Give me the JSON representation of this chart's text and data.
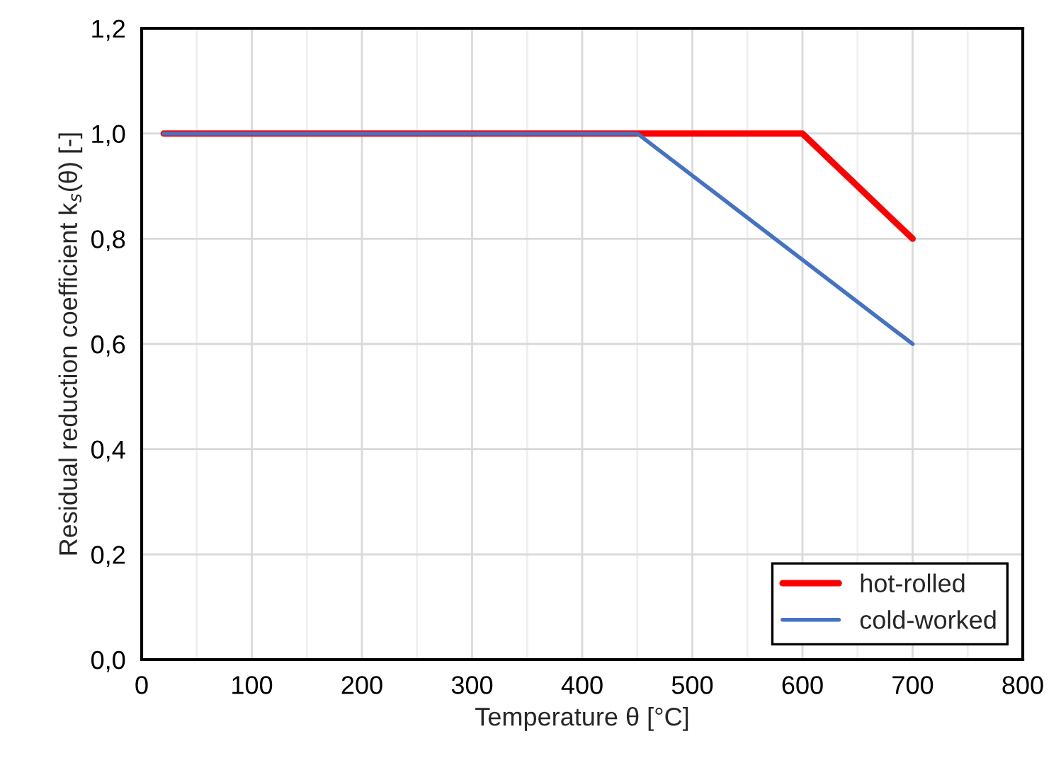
{
  "chart_data": {
    "type": "line",
    "xlabel": "Temperature θ [°C]",
    "ylabel": "Residual reduction coefficient k$_{s}$(θ) [-]",
    "series": [
      {
        "name": "hot-rolled",
        "color": "#ff0000",
        "x": [
          20,
          600,
          700
        ],
        "values": [
          1.0,
          1.0,
          0.8
        ]
      },
      {
        "name": "cold-worked",
        "color": "#4472c4",
        "x": [
          20,
          450,
          700
        ],
        "values": [
          1.0,
          1.0,
          0.6
        ]
      }
    ],
    "xlim": [
      0,
      800
    ],
    "xticks": [
      0,
      100,
      200,
      300,
      400,
      500,
      600,
      700,
      800
    ],
    "ylim": [
      0,
      1.2
    ],
    "yticks": [
      {
        "value": 0,
        "label": "0,0"
      },
      {
        "value": 0.2,
        "label": "0,2"
      },
      {
        "value": 0.4,
        "label": "0,4"
      },
      {
        "value": 0.6,
        "label": "0,6"
      },
      {
        "value": 0.8,
        "label": "0,8"
      },
      {
        "value": 1.0,
        "label": "1,0"
      },
      {
        "value": 1.2,
        "label": "1,2"
      }
    ],
    "grid": true,
    "legend": "bottom right",
    "marker": "none",
    "line_style": "solid"
  }
}
